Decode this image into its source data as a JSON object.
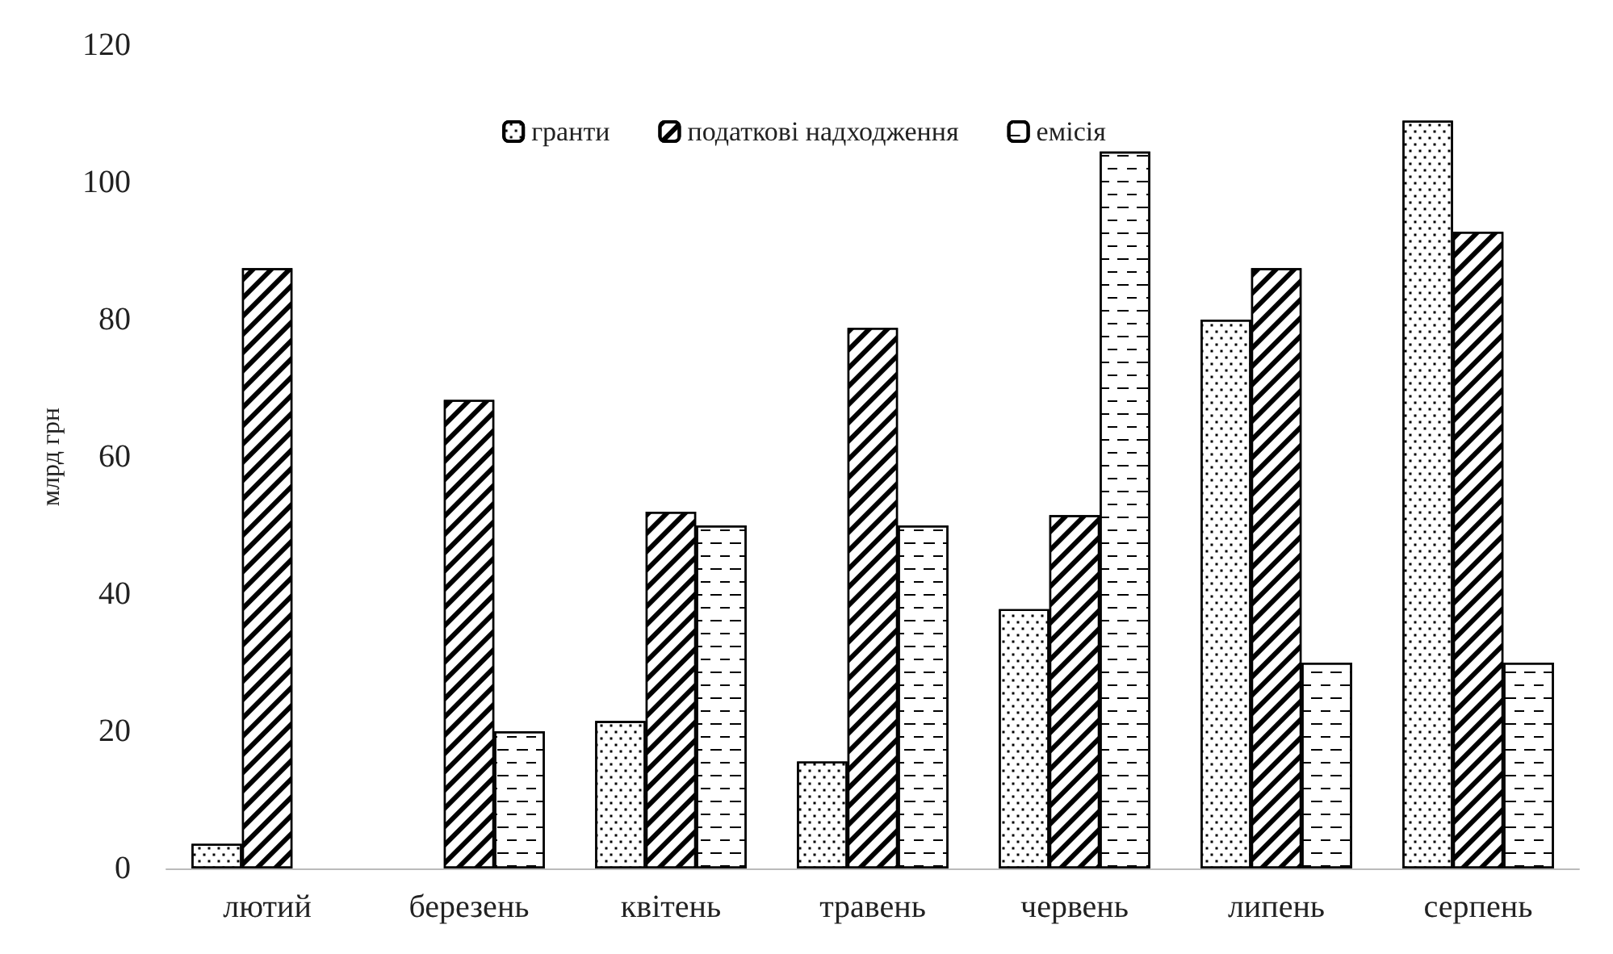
{
  "chart_data": {
    "type": "bar",
    "ylabel": "млрд грн",
    "categories": [
      "лютий",
      "березень",
      "квітень",
      "травень",
      "червень",
      "липень",
      "серпень"
    ],
    "series": [
      {
        "name": "гранти",
        "color": "#000000",
        "values": [
          3.6,
          null,
          21.5,
          15.6,
          37.8,
          80,
          109
        ]
      },
      {
        "name": "податкові надходження",
        "color": "#000000",
        "values": [
          87.5,
          68.3,
          52,
          78.8,
          51.5,
          87.5,
          92.8
        ]
      },
      {
        "name": "емісія",
        "color": "#000000",
        "values": [
          null,
          20,
          50,
          50,
          104.5,
          30,
          30
        ]
      }
    ],
    "ylim": [
      0,
      120
    ],
    "yticks": [
      0,
      20,
      40,
      60,
      80,
      100,
      120
    ],
    "grid": false,
    "legend": "top"
  }
}
